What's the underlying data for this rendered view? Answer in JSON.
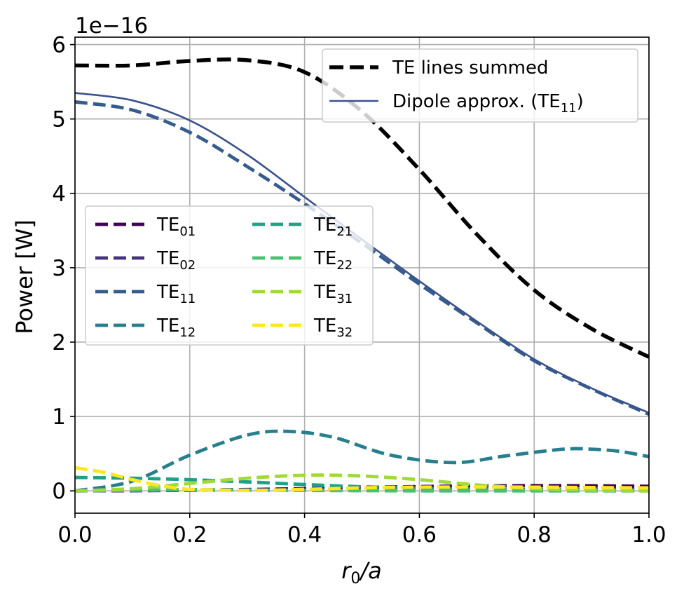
{
  "chart_data": {
    "type": "line",
    "xlabel_var": "r",
    "xlabel_sub": "0",
    "xlabel_rest": "/a",
    "ylabel": "Power [W]",
    "offset_text": "1e−16",
    "xlim": [
      0.0,
      1.0
    ],
    "ylim": [
      -0.3,
      6.1
    ],
    "xticks": [
      0.0,
      0.2,
      0.4,
      0.6,
      0.8,
      1.0
    ],
    "xtick_labels": [
      "0.0",
      "0.2",
      "0.4",
      "0.6",
      "0.8",
      "1.0"
    ],
    "yticks": [
      0,
      1,
      2,
      3,
      4,
      5,
      6
    ],
    "ytick_labels": [
      "0",
      "1",
      "2",
      "3",
      "4",
      "5",
      "6"
    ],
    "grid": true,
    "legend_top": {
      "placement": "top-right",
      "entries": [
        {
          "base": "TE lines summed",
          "sub": "",
          "suffix": "",
          "color": "#000000",
          "style": "dashed"
        },
        {
          "base": "Dipole approx. (TE",
          "sub": "11",
          "suffix": ")",
          "color": "#3b528b",
          "style": "solid"
        }
      ]
    },
    "legend_modes": {
      "placement": "center-left",
      "entries": [
        {
          "base": "TE",
          "sub": "01",
          "color": "#440154"
        },
        {
          "base": "TE",
          "sub": "02",
          "color": "#46327e"
        },
        {
          "base": "TE",
          "sub": "11",
          "color": "#365c8d"
        },
        {
          "base": "TE",
          "sub": "12",
          "color": "#277f8e"
        },
        {
          "base": "TE",
          "sub": "21",
          "color": "#1fa187"
        },
        {
          "base": "TE",
          "sub": "22",
          "color": "#4ac16d"
        },
        {
          "base": "TE",
          "sub": "31",
          "color": "#a0da39"
        },
        {
          "base": "TE",
          "sub": "32",
          "color": "#fde725"
        }
      ]
    },
    "series": [
      {
        "name": "TE01",
        "color": "#440154",
        "style": "dashed",
        "x": [
          0.0,
          0.1,
          0.2,
          0.3,
          0.4,
          0.5,
          0.6,
          0.7,
          0.8,
          0.9,
          1.0
        ],
        "y": [
          0.0,
          0.002,
          0.008,
          0.018,
          0.03,
          0.045,
          0.058,
          0.066,
          0.07,
          0.068,
          0.062
        ]
      },
      {
        "name": "TE02",
        "color": "#46327e",
        "style": "dashed",
        "x": [
          0.0,
          0.1,
          0.2,
          0.3,
          0.4,
          0.5,
          0.6,
          0.7,
          0.8,
          0.9,
          1.0
        ],
        "y": [
          0.0,
          0.003,
          0.01,
          0.016,
          0.018,
          0.015,
          0.012,
          0.013,
          0.017,
          0.02,
          0.02
        ]
      },
      {
        "name": "TE11",
        "color": "#365c8d",
        "style": "dashed",
        "x": [
          0.0,
          0.1,
          0.2,
          0.3,
          0.4,
          0.5,
          0.6,
          0.7,
          0.8,
          0.9,
          1.0
        ],
        "y": [
          5.23,
          5.12,
          4.82,
          4.36,
          3.86,
          3.33,
          2.78,
          2.26,
          1.75,
          1.37,
          1.03
        ]
      },
      {
        "name": "TE12",
        "color": "#277f8e",
        "style": "dashed",
        "x": [
          0.0,
          0.1,
          0.2,
          0.3,
          0.37,
          0.45,
          0.55,
          0.66,
          0.75,
          0.85,
          0.9,
          0.95,
          1.0
        ],
        "y": [
          0.0,
          0.13,
          0.48,
          0.75,
          0.8,
          0.72,
          0.48,
          0.38,
          0.47,
          0.56,
          0.56,
          0.53,
          0.46
        ]
      },
      {
        "name": "TE21",
        "color": "#1fa187",
        "style": "dashed",
        "x": [
          0.0,
          0.1,
          0.2,
          0.3,
          0.4,
          0.5,
          0.6,
          0.7,
          0.8,
          0.9,
          1.0
        ],
        "y": [
          0.18,
          0.17,
          0.15,
          0.12,
          0.085,
          0.055,
          0.035,
          0.025,
          0.02,
          0.015,
          0.01
        ]
      },
      {
        "name": "TE22",
        "color": "#4ac16d",
        "style": "dashed",
        "x": [
          0.0,
          0.1,
          0.2,
          0.3,
          0.4,
          0.5,
          0.6,
          0.7,
          0.8,
          0.9,
          1.0
        ],
        "y": [
          0.0,
          0.008,
          0.015,
          0.01,
          0.005,
          0.002,
          0.0,
          0.0,
          0.0,
          0.0,
          0.0
        ]
      },
      {
        "name": "TE31",
        "color": "#a0da39",
        "style": "dashed",
        "x": [
          0.0,
          0.1,
          0.2,
          0.3,
          0.4,
          0.5,
          0.6,
          0.7,
          0.8,
          0.9,
          1.0
        ],
        "y": [
          0.0,
          0.03,
          0.1,
          0.17,
          0.21,
          0.2,
          0.15,
          0.08,
          0.03,
          0.01,
          0.0
        ]
      },
      {
        "name": "TE32",
        "color": "#fde725",
        "style": "dashed",
        "x": [
          0.0,
          0.05,
          0.1,
          0.15,
          0.2,
          0.3,
          0.4,
          0.5,
          0.6,
          0.7,
          0.8,
          0.9,
          1.0
        ],
        "y": [
          0.31,
          0.25,
          0.15,
          0.07,
          0.02,
          0.005,
          0.02,
          0.04,
          0.05,
          0.05,
          0.05,
          0.045,
          0.04
        ]
      },
      {
        "name": "Dipole approx. (TE11)",
        "color": "#3b528b",
        "style": "solid",
        "x": [
          0.0,
          0.1,
          0.2,
          0.3,
          0.4,
          0.5,
          0.6,
          0.7,
          0.8,
          0.9,
          1.0
        ],
        "y": [
          5.35,
          5.25,
          4.98,
          4.52,
          3.95,
          3.38,
          2.82,
          2.28,
          1.77,
          1.38,
          1.05
        ]
      },
      {
        "name": "TE lines summed",
        "color": "#000000",
        "style": "dashed",
        "x": [
          0.0,
          0.1,
          0.2,
          0.3,
          0.4,
          0.5,
          0.6,
          0.7,
          0.8,
          0.9,
          1.0
        ],
        "y": [
          5.72,
          5.72,
          5.78,
          5.79,
          5.63,
          5.1,
          4.32,
          3.45,
          2.7,
          2.18,
          1.8
        ]
      }
    ]
  }
}
